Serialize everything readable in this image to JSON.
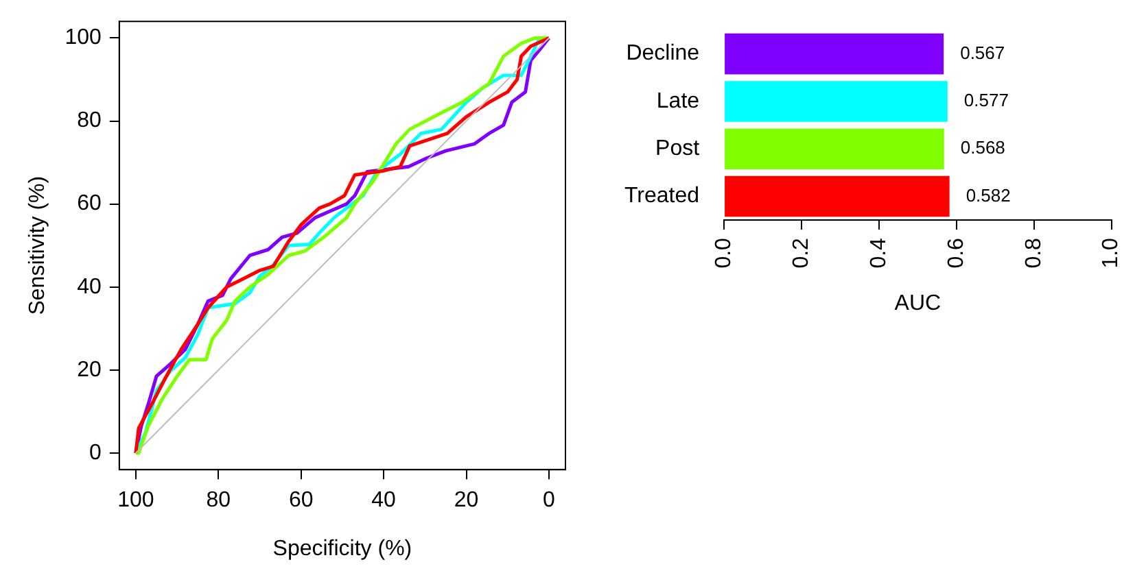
{
  "chart_data": [
    {
      "type": "line",
      "xlabel": "Specificity (%)",
      "ylabel": "Sensitivity (%)",
      "xlim": [
        104,
        -4
      ],
      "ylim": [
        -4,
        104
      ],
      "xticks": [
        100,
        80,
        60,
        40,
        20,
        0
      ],
      "yticks": [
        0,
        20,
        40,
        60,
        80,
        100
      ],
      "grid": false,
      "series": [
        {
          "color": "#bebebe",
          "x": [
            100,
            0
          ],
          "values": [
            0,
            100
          ]
        },
        {
          "color": "#ff0000",
          "x": [
            100,
            99.3,
            96,
            92.6,
            89,
            85,
            82.5,
            78,
            74,
            70,
            66.7,
            63,
            60,
            55.6,
            53,
            49.5,
            47,
            40,
            36,
            33.7,
            24.6,
            20,
            14.5,
            10,
            7.7,
            6.7,
            4.4,
            0
          ],
          "values": [
            0,
            6,
            12,
            18.5,
            25,
            31,
            35,
            40,
            42,
            44,
            45,
            51,
            55,
            59,
            60,
            62,
            67,
            68,
            69,
            74,
            77,
            81,
            84.5,
            87,
            90,
            95.6,
            98,
            100
          ]
        },
        {
          "color": "#80ff00",
          "x": [
            100,
            99.3,
            97,
            93.6,
            90,
            87,
            83,
            81.5,
            78,
            76,
            72.4,
            68,
            63,
            59,
            54.5,
            49,
            47,
            42.6,
            37,
            33.7,
            26,
            21,
            14.5,
            11,
            6.7,
            3.4,
            0
          ],
          "values": [
            0,
            0,
            6.4,
            13,
            18.5,
            22.5,
            22.5,
            27.5,
            32,
            36.6,
            40,
            43,
            47.6,
            48.7,
            52,
            56.7,
            60,
            65.4,
            74.5,
            78,
            82,
            84.5,
            89,
            95.6,
            98.7,
            100,
            100
          ]
        },
        {
          "color": "#00ffff",
          "x": [
            100,
            97.6,
            95,
            91.6,
            88,
            85,
            82.5,
            76,
            72.4,
            70,
            67,
            63,
            58,
            55.6,
            52,
            49,
            45,
            41.6,
            36,
            31,
            26,
            20,
            16,
            11,
            6.7,
            4.4,
            2.4,
            0
          ],
          "values": [
            0,
            5,
            15,
            19.8,
            23,
            28.5,
            35,
            36,
            38.6,
            42.6,
            45,
            50,
            50.3,
            53,
            56.7,
            59,
            62,
            67.8,
            72,
            77,
            78,
            84.5,
            88,
            91,
            91,
            95.6,
            99.7,
            100
          ]
        },
        {
          "color": "#8000ff",
          "x": [
            100,
            98.7,
            97,
            95,
            91.6,
            88,
            85,
            82.5,
            79,
            77,
            72.4,
            68,
            64.6,
            61,
            56.6,
            52,
            49,
            47,
            44,
            34,
            29.7,
            25,
            18,
            14.5,
            11,
            9,
            5.7,
            4.4,
            2.4,
            0
          ],
          "values": [
            0,
            6.4,
            11.7,
            18.5,
            21.5,
            25,
            31,
            36.6,
            38,
            42,
            47.6,
            49,
            52,
            53,
            56.7,
            58.7,
            60,
            62,
            67.8,
            69,
            71,
            72.8,
            74.5,
            77,
            79,
            84.5,
            87,
            94.6,
            97,
            100
          ]
        }
      ]
    },
    {
      "type": "bar",
      "orientation": "horizontal",
      "xlabel": "AUC",
      "categories": [
        "Decline",
        "Late",
        "Post",
        "Treated"
      ],
      "values": [
        0.567,
        0.577,
        0.568,
        0.582
      ],
      "colors": [
        "#8000ff",
        "#00ffff",
        "#80ff00",
        "#ff0000"
      ],
      "xlim": [
        0,
        1
      ],
      "xticks": [
        {
          "value": 0,
          "label": "0.0"
        },
        0.2,
        0.4,
        0.6,
        0.8,
        {
          "value": 1,
          "label": "1.0"
        }
      ],
      "data_labels": true,
      "grid": false
    }
  ]
}
